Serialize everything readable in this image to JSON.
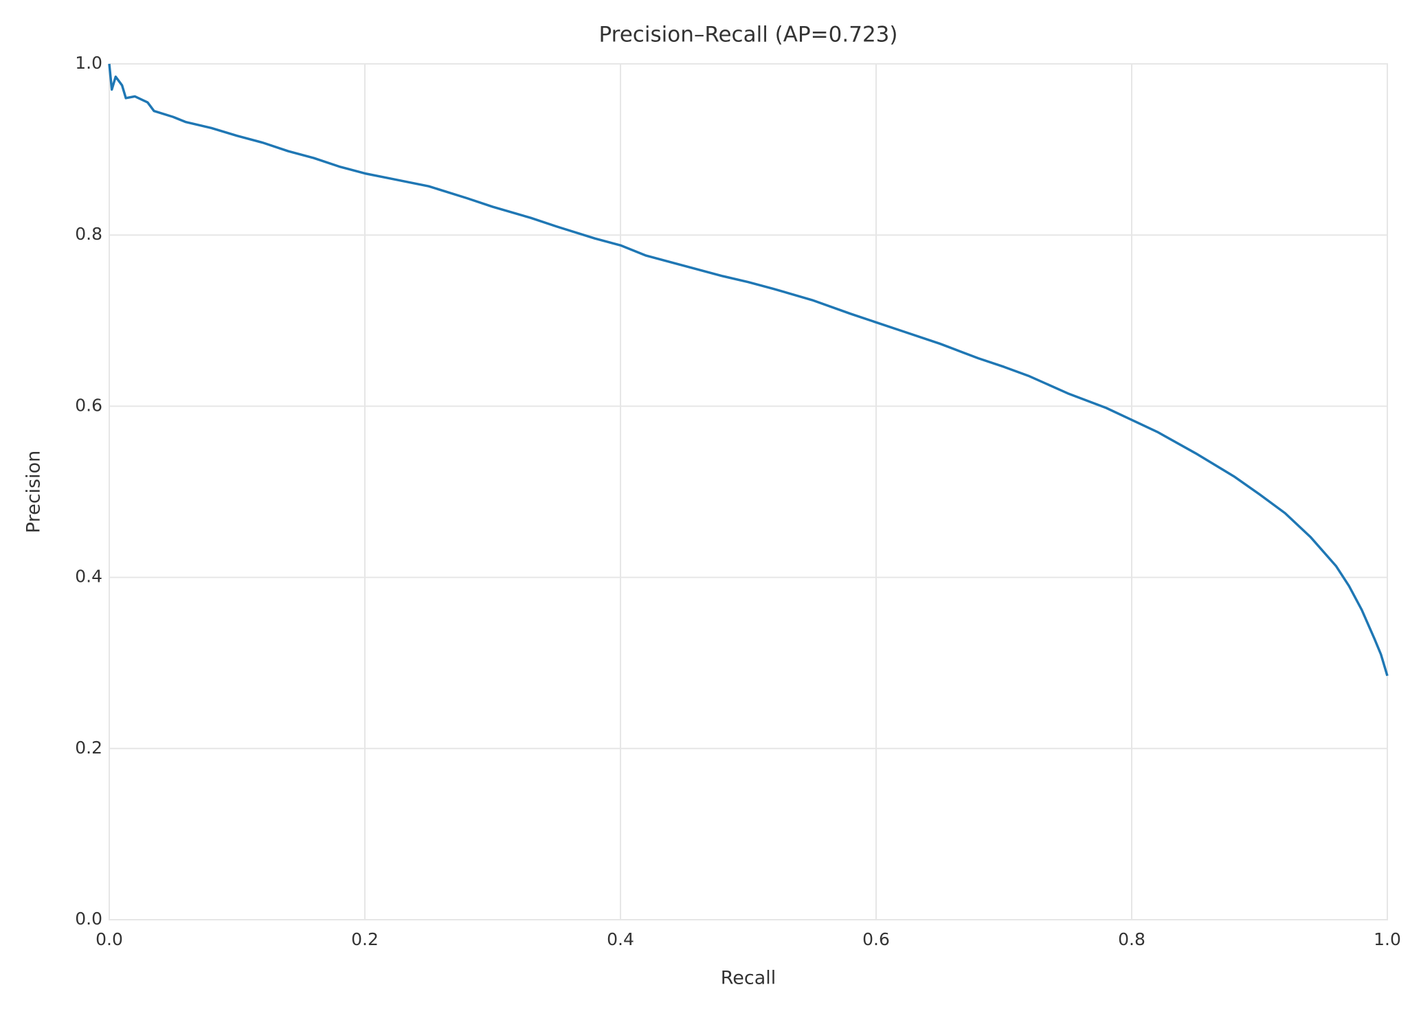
{
  "chart_data": {
    "type": "line",
    "title": "Precision–Recall (AP=0.723)",
    "xlabel": "Recall",
    "ylabel": "Precision",
    "color": "#1f77b4",
    "grid": true,
    "x": [
      0,
      0.002,
      0.005,
      0.01,
      0.013,
      0.02,
      0.03,
      0.035,
      0.05,
      0.06,
      0.08,
      0.1,
      0.12,
      0.14,
      0.16,
      0.18,
      0.2,
      0.22,
      0.25,
      0.28,
      0.3,
      0.33,
      0.35,
      0.38,
      0.4,
      0.42,
      0.45,
      0.48,
      0.5,
      0.52,
      0.55,
      0.58,
      0.6,
      0.62,
      0.65,
      0.68,
      0.7,
      0.72,
      0.75,
      0.78,
      0.8,
      0.82,
      0.85,
      0.88,
      0.9,
      0.92,
      0.94,
      0.96,
      0.97,
      0.98,
      0.99,
      0.995,
      1.0
    ],
    "values": [
      1.0,
      0.97,
      0.985,
      0.975,
      0.96,
      0.962,
      0.955,
      0.945,
      0.938,
      0.932,
      0.925,
      0.916,
      0.908,
      0.898,
      0.89,
      0.88,
      0.872,
      0.866,
      0.857,
      0.843,
      0.833,
      0.82,
      0.81,
      0.796,
      0.788,
      0.776,
      0.764,
      0.752,
      0.745,
      0.737,
      0.724,
      0.708,
      0.698,
      0.688,
      0.673,
      0.656,
      0.646,
      0.635,
      0.615,
      0.598,
      0.584,
      0.57,
      0.545,
      0.518,
      0.497,
      0.475,
      0.447,
      0.413,
      0.39,
      0.362,
      0.328,
      0.31,
      0.285
    ],
    "xlim": [
      0,
      1
    ],
    "ylim": [
      0,
      1
    ],
    "xticks": [
      {
        "value": 0,
        "label": "0.0"
      },
      0.2,
      0.4,
      0.6,
      0.8,
      {
        "value": 1,
        "label": "1.0"
      }
    ],
    "yticks": [
      {
        "value": 0,
        "label": "0.0"
      },
      0.2,
      0.4,
      0.6,
      0.8,
      {
        "value": 1,
        "label": "1.0"
      }
    ]
  }
}
